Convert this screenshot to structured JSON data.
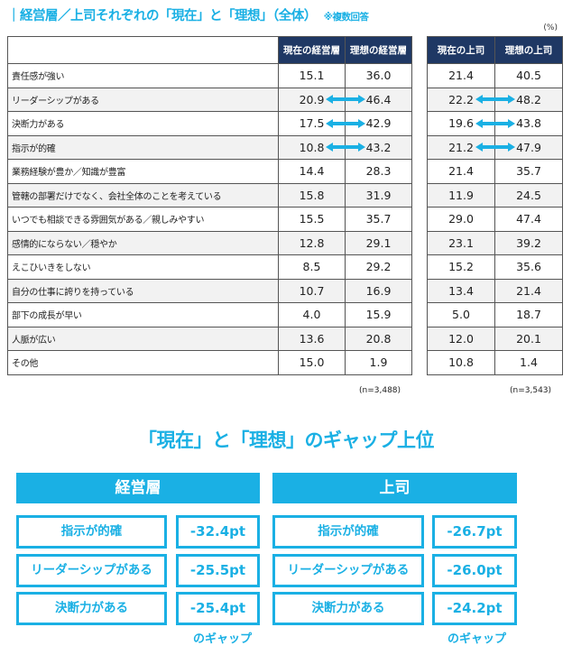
{
  "header": {
    "title": "｜経営層／上司それぞれの「現在」と「理想」（全体）",
    "note": "※複数回答",
    "unit": "(%)"
  },
  "chart_data": {
    "type": "table",
    "columns": [
      "現在の経営層",
      "理想の経営層",
      "現在の上司",
      "理想の上司"
    ],
    "rows": [
      {
        "label": "責任感が強い",
        "values": [
          "15.1",
          "36.0",
          "21.4",
          "40.5"
        ],
        "arrow_exec": false,
        "arrow_boss": false
      },
      {
        "label": "リーダーシップがある",
        "values": [
          "20.9",
          "46.4",
          "22.2",
          "48.2"
        ],
        "arrow_exec": true,
        "arrow_boss": true
      },
      {
        "label": "決断力がある",
        "values": [
          "17.5",
          "42.9",
          "19.6",
          "43.8"
        ],
        "arrow_exec": true,
        "arrow_boss": true
      },
      {
        "label": "指示が的確",
        "values": [
          "10.8",
          "43.2",
          "21.2",
          "47.9"
        ],
        "arrow_exec": true,
        "arrow_boss": true
      },
      {
        "label": "業務経験が豊か／知識が豊富",
        "values": [
          "14.4",
          "28.3",
          "21.4",
          "35.7"
        ],
        "arrow_exec": false,
        "arrow_boss": false
      },
      {
        "label": "管轄の部署だけでなく、会社全体のことを考えている",
        "values": [
          "15.8",
          "31.9",
          "11.9",
          "24.5"
        ],
        "arrow_exec": false,
        "arrow_boss": false
      },
      {
        "label": "いつでも相談できる雰囲気がある／親しみやすい",
        "values": [
          "15.5",
          "35.7",
          "29.0",
          "47.4"
        ],
        "arrow_exec": false,
        "arrow_boss": false
      },
      {
        "label": "感情的にならない／穏やか",
        "values": [
          "12.8",
          "29.1",
          "23.1",
          "39.2"
        ],
        "arrow_exec": false,
        "arrow_boss": false
      },
      {
        "label": "えこひいきをしない",
        "values": [
          "8.5",
          "29.2",
          "15.2",
          "35.6"
        ],
        "arrow_exec": false,
        "arrow_boss": false
      },
      {
        "label": "自分の仕事に誇りを持っている",
        "values": [
          "10.7",
          "16.9",
          "13.4",
          "21.4"
        ],
        "arrow_exec": false,
        "arrow_boss": false
      },
      {
        "label": "部下の成長が早い",
        "values": [
          "4.0",
          "15.9",
          "5.0",
          "18.7"
        ],
        "arrow_exec": false,
        "arrow_boss": false
      },
      {
        "label": "人脈が広い",
        "values": [
          "13.6",
          "20.8",
          "12.0",
          "20.1"
        ],
        "arrow_exec": false,
        "arrow_boss": false
      },
      {
        "label": "その他",
        "values": [
          "15.0",
          "1.9",
          "10.8",
          "1.4"
        ],
        "arrow_exec": false,
        "arrow_boss": false
      }
    ],
    "n_exec": "(n=3,488)",
    "n_boss": "(n=3,543)"
  },
  "gap": {
    "title": "「現在」と「理想」のギャップ上位",
    "exec": {
      "heading": "経営層",
      "items": [
        {
          "label": "指示が的確",
          "value": "-32.4pt"
        },
        {
          "label": "リーダーシップがある",
          "value": "-25.5pt"
        },
        {
          "label": "決断力がある",
          "value": "-25.4pt"
        }
      ],
      "note": "のギャップ"
    },
    "boss": {
      "heading": "上司",
      "items": [
        {
          "label": "指示が的確",
          "value": "-26.7pt"
        },
        {
          "label": "リーダーシップがある",
          "value": "-26.0pt"
        },
        {
          "label": "決断力がある",
          "value": "-24.2pt"
        }
      ],
      "note": "のギャップ"
    }
  },
  "colors": {
    "accent": "#1ab0e4",
    "header_bg": "#1f3864"
  }
}
